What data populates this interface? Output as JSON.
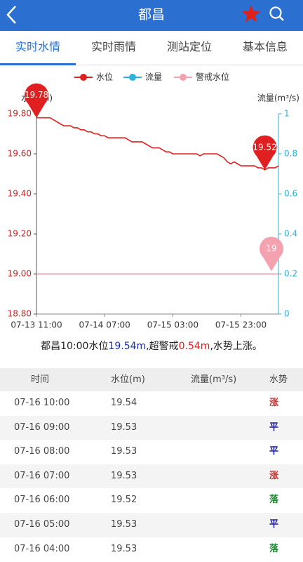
{
  "header": {
    "title": "都昌"
  },
  "tabs": [
    {
      "label": "实时水情",
      "active": true
    },
    {
      "label": "实时雨情",
      "active": false
    },
    {
      "label": "测站定位",
      "active": false
    },
    {
      "label": "基本信息",
      "active": false
    }
  ],
  "chart_data": {
    "type": "line",
    "y_label": "水位(m)",
    "y2_label": "流量(m³/s)",
    "categories": [
      "07-13 11:00",
      null,
      null,
      null,
      null,
      null,
      null,
      null,
      null,
      null,
      null,
      null,
      null,
      null,
      null,
      null,
      null,
      null,
      null,
      null,
      "07-14 07:00",
      null,
      null,
      null,
      null,
      null,
      null,
      null,
      null,
      null,
      null,
      null,
      null,
      null,
      null,
      null,
      null,
      null,
      null,
      null,
      "07-15 03:00",
      null,
      null,
      null,
      null,
      null,
      null,
      null,
      null,
      null,
      null,
      null,
      null,
      null,
      null,
      null,
      null,
      null,
      null,
      null,
      "07-15 23:00",
      null,
      null,
      null,
      null,
      null,
      null,
      null,
      null,
      null,
      null,
      null
    ],
    "series": [
      {
        "name": "水位",
        "color": "#e02020",
        "values": [
          19.78,
          19.78,
          19.78,
          19.78,
          19.78,
          19.77,
          19.76,
          19.75,
          19.74,
          19.74,
          19.74,
          19.73,
          19.73,
          19.72,
          19.72,
          19.71,
          19.71,
          19.7,
          19.7,
          19.69,
          19.69,
          19.68,
          19.68,
          19.68,
          19.68,
          19.68,
          19.68,
          19.67,
          19.66,
          19.66,
          19.66,
          19.66,
          19.65,
          19.64,
          19.63,
          19.63,
          19.63,
          19.62,
          19.61,
          19.61,
          19.6,
          19.6,
          19.6,
          19.6,
          19.6,
          19.6,
          19.6,
          19.6,
          19.59,
          19.6,
          19.6,
          19.6,
          19.6,
          19.6,
          19.59,
          19.58,
          19.56,
          19.55,
          19.56,
          19.55,
          19.54,
          19.54,
          19.54,
          19.54,
          19.54,
          19.53,
          19.53,
          19.52,
          19.53,
          19.53,
          19.53,
          19.54
        ]
      },
      {
        "name": "流量",
        "color": "#29b3de",
        "axis": "y2",
        "values": [
          null,
          null,
          null,
          null,
          null,
          null,
          null,
          null,
          null,
          null,
          null,
          null,
          null,
          null,
          null,
          null,
          null,
          null,
          null,
          null,
          null,
          null,
          null,
          null,
          null,
          null,
          null,
          null,
          null,
          null,
          null,
          null,
          null,
          null,
          null,
          null,
          null,
          null,
          null,
          null,
          null,
          null,
          null,
          null,
          null,
          null,
          null,
          null,
          null,
          null,
          null,
          null,
          null,
          null,
          null,
          null,
          null,
          null,
          null,
          null,
          null,
          null,
          null,
          null,
          null,
          null,
          null,
          null,
          null,
          null,
          null,
          null
        ]
      },
      {
        "name": "警戒水位",
        "color": "#f4a1b0",
        "value": 19
      }
    ],
    "ylim": [
      18.8,
      19.8
    ],
    "yticks": [
      {
        "value": 18.8,
        "label": "18.80"
      },
      {
        "value": 19.0,
        "label": "19.00"
      },
      {
        "value": 19.2,
        "label": "19.20"
      },
      {
        "value": 19.4,
        "label": "19.40"
      },
      {
        "value": 19.6,
        "label": "19.60"
      },
      {
        "value": 19.8,
        "label": "19.80"
      }
    ],
    "y2lim": [
      0,
      1
    ],
    "y2ticks": [
      0,
      0.2,
      0.4,
      0.6,
      0.8,
      1
    ],
    "y_color": "#c62828",
    "y2_color": "#29b3de",
    "grid": false
  },
  "summary": {
    "parts": [
      {
        "text": "都昌10:00水位",
        "color": "#222222"
      },
      {
        "text": "19.54m",
        "color": "#1a2fb0"
      },
      {
        "text": ",超警戒",
        "color": "#222222"
      },
      {
        "text": "0.54m",
        "color": "#e02020"
      },
      {
        "text": ",水势上涨。",
        "color": "#222222"
      }
    ]
  },
  "table": {
    "header": [
      "时间",
      "水位(m)",
      "流量(m³/s)",
      "水势"
    ],
    "rows": [
      {
        "time": "07-16 10:00",
        "level": "19.54",
        "trend": "涨",
        "trend_color": "#d32f2f"
      },
      {
        "time": "07-16 09:00",
        "level": "19.53",
        "trend": "平",
        "trend_color": "#1a1aa0"
      },
      {
        "time": "07-16 08:00",
        "level": "19.53",
        "trend": "平",
        "trend_color": "#1a1aa0"
      },
      {
        "time": "07-16 07:00",
        "level": "19.53",
        "trend": "涨",
        "trend_color": "#d32f2f"
      },
      {
        "time": "07-16 06:00",
        "level": "19.52",
        "trend": "落",
        "trend_color": "#1b8a2e"
      },
      {
        "time": "07-16 05:00",
        "level": "19.53",
        "trend": "平",
        "trend_color": "#1a1aa0"
      },
      {
        "time": "07-16 04:00",
        "level": "19.53",
        "trend": "落",
        "trend_color": "#1b8a2e"
      }
    ]
  }
}
